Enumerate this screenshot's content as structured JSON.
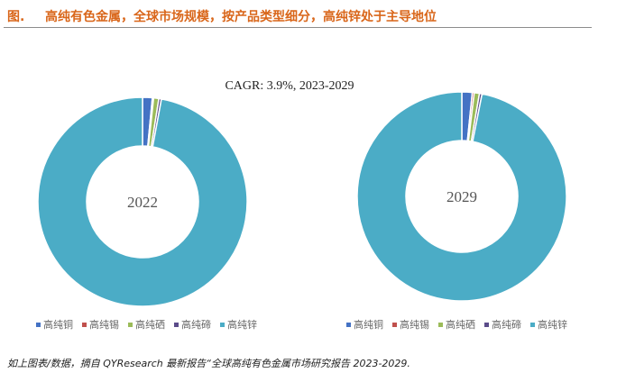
{
  "header": {
    "label": "图.",
    "title": "高纯有色金属，全球市场规模，按产品类型细分，高纯锌处于主导地位"
  },
  "cagr_text": "CAGR:  3.9%, 2023-2029",
  "source_text": "如上图表/数据，摘自 QYResearch 最新报告“全球高纯有色金属市场研究报告 2023-2029.",
  "colors": {
    "accent": "#d9661a",
    "series": [
      "#4472c4",
      "#c0504d",
      "#9bbb59",
      "#5b4c8a",
      "#4bacc6"
    ]
  },
  "chart_data": [
    {
      "type": "pie",
      "donut": true,
      "center_label": "2022",
      "categories": [
        "高纯铜",
        "高纯锡",
        "高纯硒",
        "高纯碲",
        "高纯锌"
      ],
      "values": [
        1.5,
        0.2,
        0.8,
        0.4,
        97.1
      ],
      "legend_position": "bottom"
    },
    {
      "type": "pie",
      "donut": true,
      "center_label": "2029",
      "categories": [
        "高纯铜",
        "高纯锡",
        "高纯硒",
        "高纯碲",
        "高纯锌"
      ],
      "values": [
        1.6,
        0.3,
        0.8,
        0.4,
        96.9
      ],
      "legend_position": "bottom"
    }
  ]
}
